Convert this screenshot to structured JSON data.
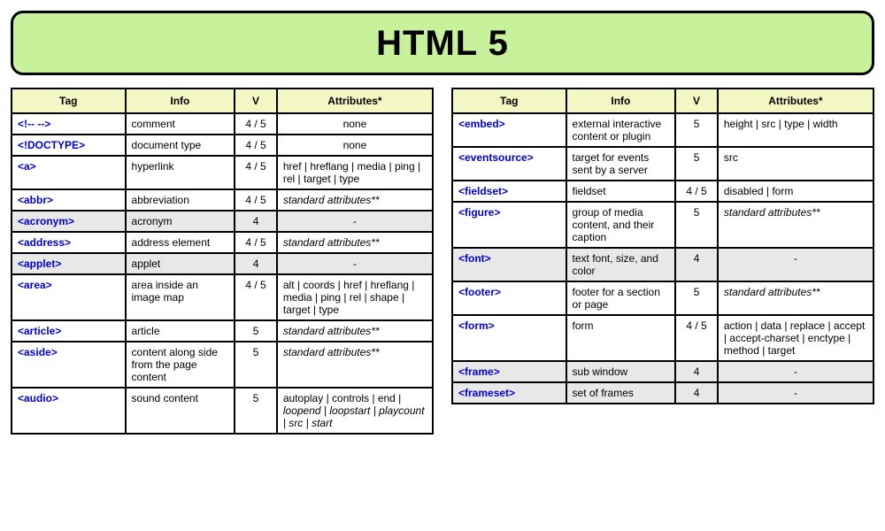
{
  "title": "HTML 5",
  "colors": {
    "banner_bg": "#c8f19b",
    "header_bg": "#f3f7c3",
    "deprecated_bg": "#e8e8e8",
    "link": "#0000d0",
    "border": "#000000"
  },
  "columns": [
    "Tag",
    "Info",
    "V",
    "Attributes*"
  ],
  "left": [
    {
      "tag": "<!-- -->",
      "info": "comment",
      "v": "4 / 5",
      "attr": "none",
      "attr_center": true
    },
    {
      "tag": "<!DOCTYPE>",
      "info": "document type",
      "v": "4 / 5",
      "attr": "none",
      "attr_center": true
    },
    {
      "tag": "<a>",
      "info": "hyperlink",
      "v": "4 / 5",
      "attr": "href | hreflang | media | ping | rel | target | type"
    },
    {
      "tag": "<abbr>",
      "info": "abbreviation",
      "v": "4 / 5",
      "attr": "standard attributes**",
      "ital": true
    },
    {
      "tag": "<acronym>",
      "info": "acronym",
      "v": "4",
      "attr": "-",
      "dep": true
    },
    {
      "tag": "<address>",
      "info": "address element",
      "v": "4 / 5",
      "attr": "standard attributes**",
      "ital": true
    },
    {
      "tag": "<applet>",
      "info": "applet",
      "v": "4",
      "attr": "-",
      "dep": true
    },
    {
      "tag": "<area>",
      "info": "area inside an image map",
      "v": "4 / 5",
      "attr": "alt | coords | href | hreflang | media | ping | rel | shape | target | type"
    },
    {
      "tag": "<article>",
      "info": "article",
      "v": "5",
      "attr": "standard attributes**",
      "ital": true
    },
    {
      "tag": "<aside>",
      "info": "content along side from the page content",
      "v": "5",
      "attr": "standard attributes**",
      "ital": true
    },
    {
      "tag": "<audio>",
      "info": "sound content",
      "v": "5",
      "attr": "autoplay | controls | end | loopend | loopstart | playcount | src | start",
      "ital_partial": true
    }
  ],
  "right": [
    {
      "tag": "<embed>",
      "info": "external interactive content or plugin",
      "v": "5",
      "attr": "height | src | type | width"
    },
    {
      "tag": "<eventsource>",
      "info": "target for events sent by a server",
      "v": "5",
      "attr": "src"
    },
    {
      "tag": "<fieldset>",
      "info": "fieldset",
      "v": "4 / 5",
      "attr": "disabled | form"
    },
    {
      "tag": "<figure>",
      "info": "group of media content, and their caption",
      "v": "5",
      "attr": "standard attributes**",
      "ital": true
    },
    {
      "tag": "<font>",
      "info": "text font, size, and color",
      "v": "4",
      "attr": "-",
      "dep": true
    },
    {
      "tag": "<footer>",
      "info": "footer for a section or page",
      "v": "5",
      "attr": "standard attributes**",
      "ital": true
    },
    {
      "tag": "<form>",
      "info": "form",
      "v": "4 / 5",
      "attr": "action | data | replace | accept | accept-charset | enctype | method | target"
    },
    {
      "tag": "<frame>",
      "info": "sub window",
      "v": "4",
      "attr": "-",
      "dep": true
    },
    {
      "tag": "<frameset>",
      "info": "set of frames",
      "v": "4",
      "attr": "-",
      "dep": true
    }
  ]
}
